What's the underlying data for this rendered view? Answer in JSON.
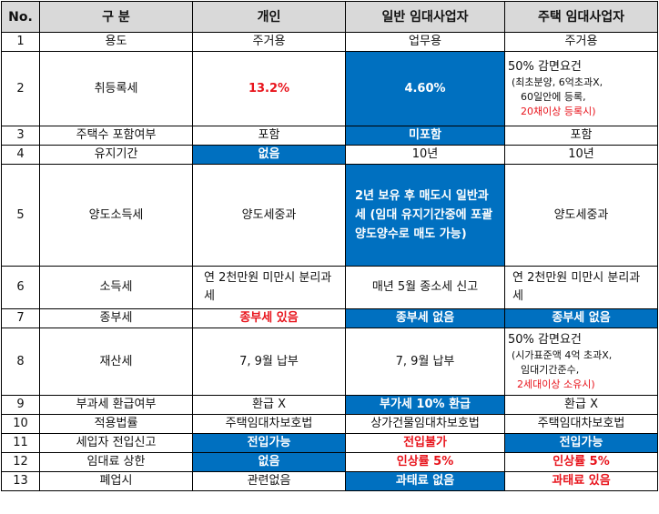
{
  "headers": [
    "No.",
    "구  분",
    "개인",
    "일반 임대사업자",
    "주택 임대사업자"
  ],
  "rows": [
    {
      "no": "1",
      "label": "용도",
      "c1": "주거용",
      "c2": "업무용",
      "c3": "주거용"
    },
    {
      "no": "2",
      "label": "취등록세",
      "c1": "13.2%",
      "c2": "4.60%",
      "c3_lines": [
        "50% 감면요건",
        "(최초분양, 6억초과X,",
        "60일안에 등록,",
        "20채이상 등록시)"
      ]
    },
    {
      "no": "3",
      "label": "주택수 포함여부",
      "c1": "포함",
      "c2": "미포함",
      "c3": "포함"
    },
    {
      "no": "4",
      "label": "유지기간",
      "c1": "없음",
      "c2": "10년",
      "c3": "10년"
    },
    {
      "no": "5",
      "label": "양도소득세",
      "c1": "양도세중과",
      "c2": "2년 보유 후 매도시 일반과세 (임대 유지기간중에 포괄양도양수로 매도 가능)",
      "c3": "양도세중과"
    },
    {
      "no": "6",
      "label": "소득세",
      "c1": "연 2천만원 미만시 분리과세",
      "c2": "매년 5월 종소세 신고",
      "c3": "연 2천만원 미만시 분리과세"
    },
    {
      "no": "7",
      "label": "종부세",
      "c1": "종부세 있음",
      "c2": "종부세 없음",
      "c3": "종부세 없음"
    },
    {
      "no": "8",
      "label": "재산세",
      "c1": "7, 9월 납부",
      "c2": "7, 9월 납부",
      "c3_lines": [
        "50% 감면요건",
        "(시가표준액 4억 초과X,",
        "임대기간준수,",
        "2세대이상 소유시)"
      ]
    },
    {
      "no": "9",
      "label": "부과세 환급여부",
      "c1": "환급 X",
      "c2": "부가세 10% 환급",
      "c3": "환급 X"
    },
    {
      "no": "10",
      "label": "적용법률",
      "c1": "주택임대차보호법",
      "c2": "상가건물임대차보호법",
      "c3": "주택임대차보호법"
    },
    {
      "no": "11",
      "label": "세입자 전입신고",
      "c1": "전입가능",
      "c2": "전입불가",
      "c3": "전입가능"
    },
    {
      "no": "12",
      "label": "임대료 상한",
      "c1": "없음",
      "c2": "인상률 5%",
      "c3": "인상률 5%"
    },
    {
      "no": "13",
      "label": "폐업시",
      "c1": "관련없음",
      "c2": "과태료 없음",
      "c3": "과태료 있음"
    }
  ]
}
